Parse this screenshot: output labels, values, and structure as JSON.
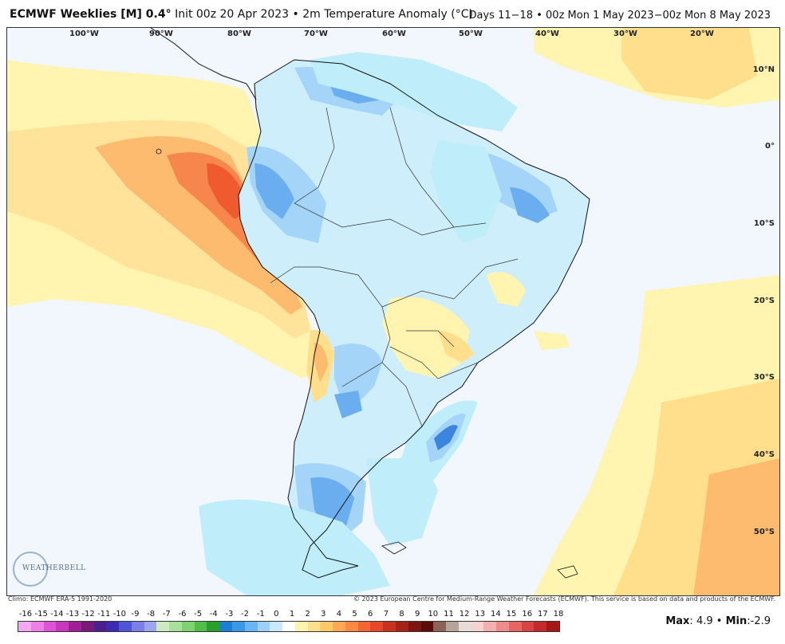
{
  "header": {
    "model": "ECMWF Weeklies [M] 0.4",
    "degree_mark": "°",
    "init": "Init 00z 20 Apr 2023",
    "sep": "•",
    "variable": "2m Temperature Anomaly (°C)",
    "valid_days": "Days 11−18",
    "valid_range": "00z Mon 1 May 2023−00z Mon 8 May 2023"
  },
  "map": {
    "longitude_labels": [
      "100°W",
      "90°W",
      "80°W",
      "70°W",
      "60°W",
      "50°W",
      "40°W",
      "30°W",
      "20°W"
    ],
    "latitude_labels": [
      "10°N",
      "0°",
      "10°S",
      "20°S",
      "30°S",
      "40°S",
      "50°S"
    ],
    "colors": {
      "ocean_background": "#f2f6fd",
      "warm_light": "#fff4b0",
      "warm_medium": "#ffdf8c",
      "warm_orange": "#fdbb70",
      "warm_strong": "#f7864d",
      "warm_peak": "#ef5a2e",
      "cool_light": "#bfeefa",
      "cool_medium": "#a4d4f8",
      "cool_strong": "#6baef0",
      "cool_peak": "#3c85df",
      "coastline": "#111111"
    }
  },
  "footer": {
    "climo": "Climo: ECMWF ERA-5 1991-2020",
    "copyright": "© 2023 European Centre for Medium-Range Weather Forecasts (ECMWF). This service is based on data and products of the ECMWF."
  },
  "colorbar": {
    "labels": [
      "-16",
      "-15",
      "-14",
      "-13",
      "-12",
      "-11",
      "-10",
      "-9",
      "-8",
      "-7",
      "-6",
      "-5",
      "-4",
      "-3",
      "-2",
      "-1",
      "0",
      "1",
      "2",
      "3",
      "4",
      "5",
      "6",
      "7",
      "8",
      "9",
      "10",
      "11",
      "12",
      "13",
      "14",
      "15",
      "16",
      "17",
      "18"
    ],
    "colors": [
      "#f5a6f0",
      "#ee7fe6",
      "#e052d6",
      "#c837bd",
      "#a01f97",
      "#7a1a78",
      "#4b1f8e",
      "#3b2ab5",
      "#4d56d6",
      "#7b7fe6",
      "#9ea4f0",
      "#cfe9c3",
      "#a8e29a",
      "#7ed36f",
      "#4fbf49",
      "#2aa02a",
      "#1a7fd6",
      "#3a98e8",
      "#68b6f3",
      "#9ecff7",
      "#c8e8fb",
      "#ffffff",
      "#fff3b0",
      "#ffe08a",
      "#ffc966",
      "#ffa955",
      "#ff8844",
      "#f76536",
      "#e8482a",
      "#c9311f",
      "#a52217",
      "#7c160f",
      "#5c0d0a",
      "#8a6456",
      "#b8a39a",
      "#e7dcd8",
      "#f6d2d2",
      "#f4b0b0",
      "#ee8c8c",
      "#e66666",
      "#d84343",
      "#c42a2a",
      "#a61818"
    ]
  },
  "stats": {
    "max_label": "Max",
    "max_value": "4.9",
    "min_label": "Min",
    "min_value": "-2.9",
    "sep": "•"
  },
  "logo": {
    "text": "WEATHERBELL"
  }
}
